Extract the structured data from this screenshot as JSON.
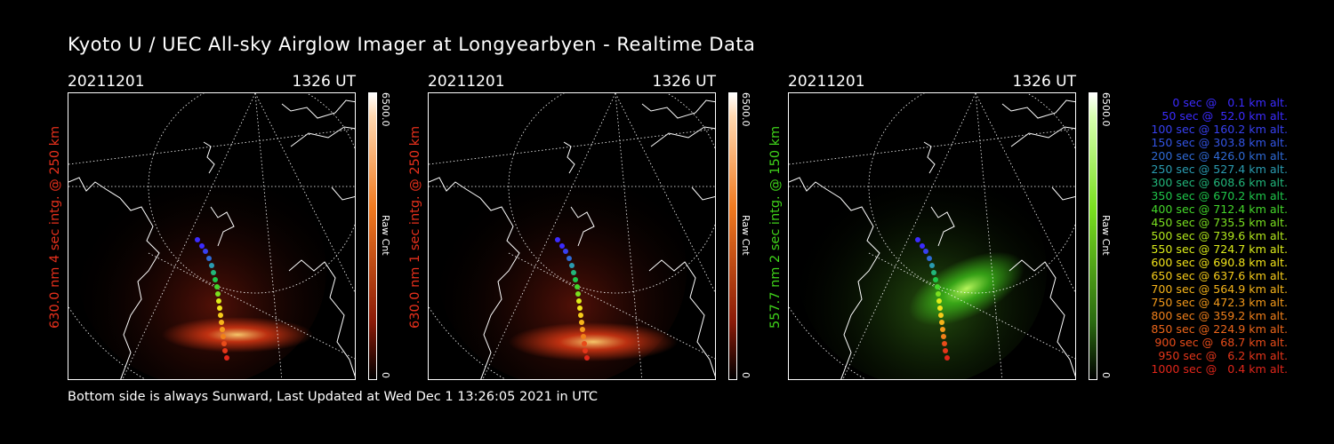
{
  "title": "Kyoto U / UEC All-sky Airglow Imager at Longyearbyen - Realtime Data",
  "footer": "Bottom side is always Sunward, Last Updated at Wed Dec  1 13:26:05 2021 in UTC",
  "panels": [
    {
      "date": "20211201",
      "time": "1326 UT",
      "ylabel": "630.0 nm 4 sec intg. @ 250 km",
      "ylabel_color": "#e8301c",
      "cbar_max": "6500.0",
      "cbar_unit": "Raw Cnt",
      "cbar_min": "0",
      "colormap": "red",
      "emission_color": "#e23a14"
    },
    {
      "date": "20211201",
      "time": "1326 UT",
      "ylabel": "630.0 nm 1 sec intg. @ 250 km",
      "ylabel_color": "#e8301c",
      "cbar_max": "6500.0",
      "cbar_unit": "Raw Cnt",
      "cbar_min": "0",
      "colormap": "red",
      "emission_color": "#e23a14"
    },
    {
      "date": "20211201",
      "time": "1326 UT",
      "ylabel": "557.7 nm 2 sec intg. @ 150 km",
      "ylabel_color": "#3fd21a",
      "cbar_max": "6500.0",
      "cbar_unit": "Raw Cnt",
      "cbar_min": "0",
      "colormap": "green",
      "emission_color": "#3fbf1a"
    }
  ],
  "trajectory_legend": [
    {
      "text": "0 sec @   0.1 km alt.",
      "color": "#3b2bff"
    },
    {
      "text": "50 sec @  52.0 km alt.",
      "color": "#3b2bff"
    },
    {
      "text": "100 sec @ 160.2 km alt.",
      "color": "#3740f0"
    },
    {
      "text": "150 sec @ 303.8 km alt.",
      "color": "#3355e6"
    },
    {
      "text": "200 sec @ 426.0 km alt.",
      "color": "#2f6ad6"
    },
    {
      "text": "250 sec @ 527.4 km alt.",
      "color": "#2a9bb0"
    },
    {
      "text": "300 sec @ 608.6 km alt.",
      "color": "#22b67a"
    },
    {
      "text": "350 sec @ 670.2 km alt.",
      "color": "#1fc64a"
    },
    {
      "text": "400 sec @ 712.4 km alt.",
      "color": "#44d62a"
    },
    {
      "text": "450 sec @ 735.5 km alt.",
      "color": "#7ae020"
    },
    {
      "text": "500 sec @ 739.6 km alt.",
      "color": "#b2e81c"
    },
    {
      "text": "550 sec @ 724.7 km alt.",
      "color": "#dcec1a"
    },
    {
      "text": "600 sec @ 690.8 km alt.",
      "color": "#f2e41a"
    },
    {
      "text": "650 sec @ 637.6 km alt.",
      "color": "#f6cc1a"
    },
    {
      "text": "700 sec @ 564.9 km alt.",
      "color": "#f6b41a"
    },
    {
      "text": "750 sec @ 472.3 km alt.",
      "color": "#f49a1a"
    },
    {
      "text": "800 sec @ 359.2 km alt.",
      "color": "#f0801a"
    },
    {
      "text": "850 sec @ 224.9 km alt.",
      "color": "#ec661a"
    },
    {
      "text": "900 sec @  68.7 km alt.",
      "color": "#e84c1a"
    },
    {
      "text": "950 sec @   6.2 km alt.",
      "color": "#e4361a"
    },
    {
      "text": "1000 sec @   0.4 km alt.",
      "color": "#e0261a"
    }
  ]
}
